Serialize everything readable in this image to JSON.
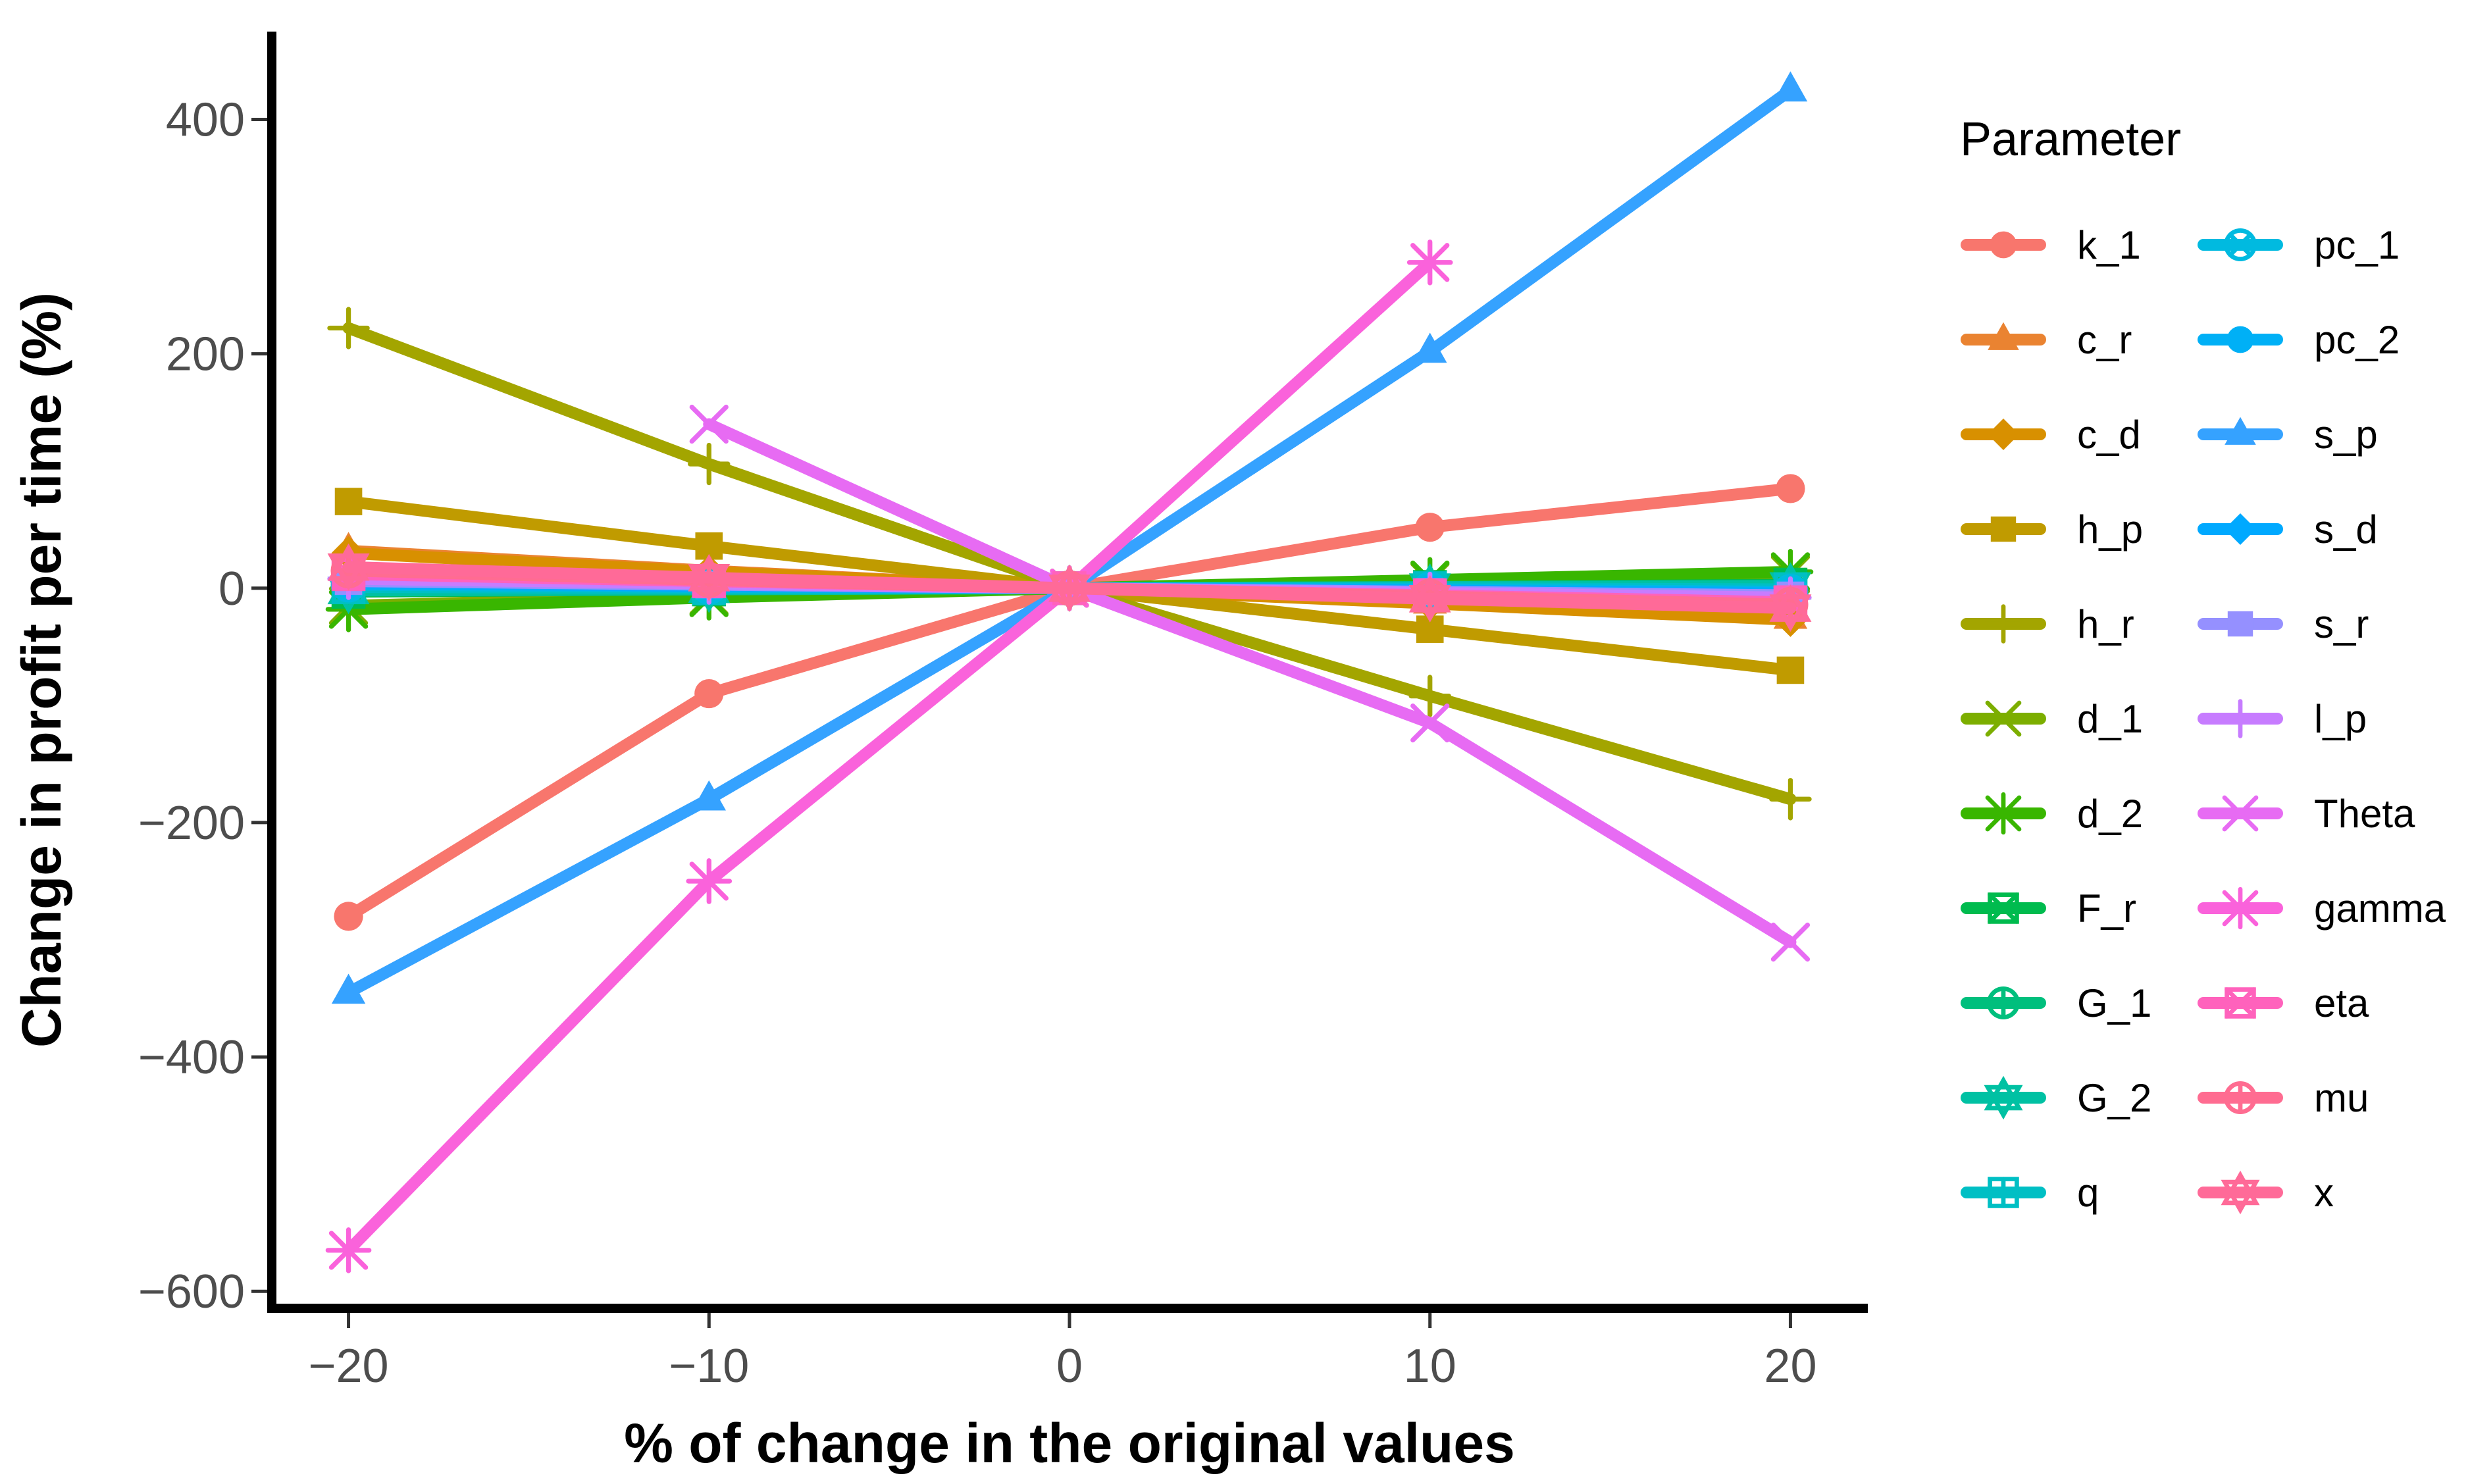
{
  "chart_data": {
    "type": "line",
    "title": "",
    "xlabel": "% of change in the original values",
    "ylabel": "Change in profit per time (%)",
    "x": [
      -20,
      -10,
      0,
      10,
      20
    ],
    "x_ticks": [
      "−20",
      "−10",
      "0",
      "10",
      "20"
    ],
    "y_ticks": [
      "−600",
      "−400",
      "−200",
      "0",
      "200",
      "400"
    ],
    "y_tick_values": [
      -600,
      -400,
      -200,
      0,
      200,
      400
    ],
    "xlim": [
      -22,
      22
    ],
    "ylim": [
      -610,
      475
    ],
    "grid": false,
    "legend": {
      "title": "Parameter",
      "position": "right",
      "columns": 2
    },
    "series": [
      {
        "name": "k_1",
        "color": "#F8766D",
        "marker": "circle",
        "values": [
          -280,
          -90,
          0,
          52,
          85
        ]
      },
      {
        "name": "c_r",
        "color": "#EA8331",
        "marker": "triangle",
        "values": [
          32,
          15,
          0,
          -12,
          -25
        ]
      },
      {
        "name": "c_d",
        "color": "#D89000",
        "marker": "diamond",
        "values": [
          30,
          14,
          0,
          -13,
          -27
        ]
      },
      {
        "name": "h_p",
        "color": "#C09B00",
        "marker": "square",
        "values": [
          74,
          36,
          0,
          -35,
          -70
        ]
      },
      {
        "name": "h_r",
        "color": "#A3A500",
        "marker": "plus",
        "values": [
          222,
          106,
          0,
          -92,
          -180
        ]
      },
      {
        "name": "d_1",
        "color": "#7CAE00",
        "marker": "cross",
        "values": [
          -15,
          -7,
          0,
          6,
          12
        ]
      },
      {
        "name": "d_2",
        "color": "#39B600",
        "marker": "asterisk",
        "values": [
          -18,
          -8,
          0,
          7,
          14
        ]
      },
      {
        "name": "F_r",
        "color": "#00BB4E",
        "marker": "square-cross",
        "values": [
          -3,
          -1,
          0,
          1,
          3
        ]
      },
      {
        "name": "G_1",
        "color": "#00BF7D",
        "marker": "circle-plus",
        "values": [
          2,
          1,
          0,
          -1,
          -2
        ]
      },
      {
        "name": "G_2",
        "color": "#00C1A3",
        "marker": "star-of-david",
        "values": [
          -2,
          -1,
          0,
          1,
          2
        ]
      },
      {
        "name": "q",
        "color": "#00BFC4",
        "marker": "square-plus",
        "values": [
          1,
          0,
          0,
          0,
          -1
        ]
      },
      {
        "name": "pc_1",
        "color": "#00BAE0",
        "marker": "circle-cross",
        "values": [
          3,
          1,
          0,
          -1,
          -3
        ]
      },
      {
        "name": "pc_2",
        "color": "#00B0F6",
        "marker": "circle",
        "values": [
          4,
          2,
          0,
          -2,
          -4
        ]
      },
      {
        "name": "s_p",
        "color": "#35A2FF",
        "marker": "triangle",
        "values": [
          -345,
          -180,
          0,
          202,
          425
        ]
      },
      {
        "name": "s_d",
        "color": "#00A9FF",
        "marker": "diamond",
        "values": [
          5,
          2,
          0,
          -2,
          -5
        ]
      },
      {
        "name": "s_r",
        "color": "#9590FF",
        "marker": "square",
        "values": [
          6,
          3,
          0,
          -3,
          -6
        ]
      },
      {
        "name": "l_p",
        "color": "#C77CFF",
        "marker": "plus",
        "values": [
          8,
          4,
          0,
          -4,
          -8
        ]
      },
      {
        "name": "Theta",
        "color": "#E76BF3",
        "marker": "cross",
        "values": [
          null,
          140,
          0,
          -115,
          -302
        ]
      },
      {
        "name": "gamma",
        "color": "#FA62DB",
        "marker": "asterisk",
        "values": [
          -565,
          -250,
          0,
          278,
          null
        ]
      },
      {
        "name": "eta",
        "color": "#FF62BC",
        "marker": "square-cross",
        "values": [
          12,
          6,
          0,
          -6,
          -12
        ]
      },
      {
        "name": "mu",
        "color": "#FF6C91",
        "marker": "circle-plus",
        "values": [
          15,
          7,
          0,
          -7,
          -14
        ]
      },
      {
        "name": "x",
        "color": "#FF6A98",
        "marker": "star-of-david",
        "values": [
          18,
          9,
          0,
          -9,
          -17
        ]
      }
    ]
  }
}
